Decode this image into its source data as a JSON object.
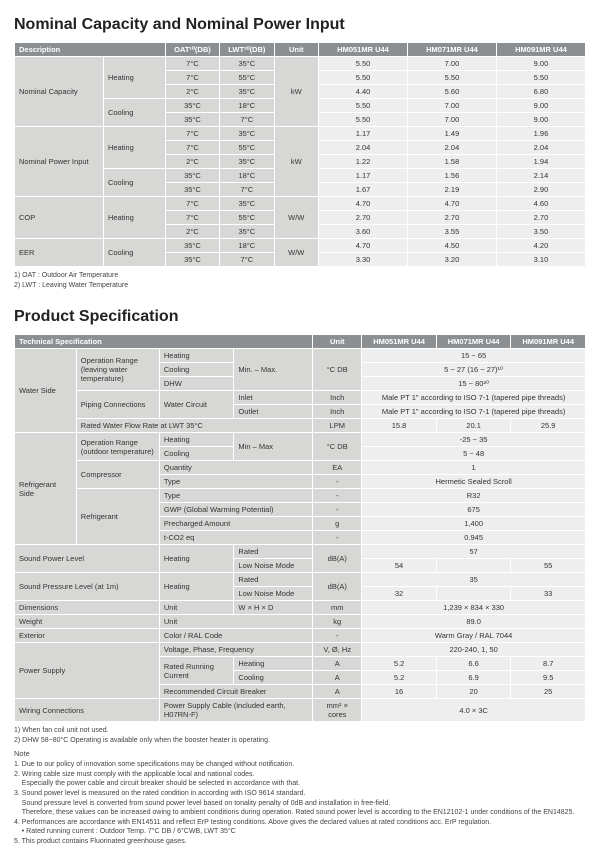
{
  "s1": {
    "title": "Nominal Capacity and Nominal Power Input",
    "headers": {
      "desc": "Description",
      "oat": "OAT¹⁰(DB)",
      "lwt": "LWT²⁰(DB)",
      "unit": "Unit",
      "m1": "HM051MR U44",
      "m2": "HM071MR U44",
      "m3": "HM091MR U44"
    },
    "groups": [
      {
        "name": "Nominal Capacity",
        "unit": "kW",
        "modes": [
          {
            "mode": "Heating",
            "rows": [
              {
                "oat": "7°C",
                "lwt": "35°C",
                "v": [
                  "5.50",
                  "7.00",
                  "9.00"
                ]
              },
              {
                "oat": "7°C",
                "lwt": "55°C",
                "v": [
                  "5.50",
                  "5.50",
                  "5.50"
                ]
              },
              {
                "oat": "2°C",
                "lwt": "35°C",
                "v": [
                  "4.40",
                  "5.60",
                  "6.80"
                ]
              }
            ]
          },
          {
            "mode": "Cooling",
            "rows": [
              {
                "oat": "35°C",
                "lwt": "18°C",
                "v": [
                  "5.50",
                  "7.00",
                  "9.00"
                ]
              },
              {
                "oat": "35°C",
                "lwt": "7°C",
                "v": [
                  "5.50",
                  "7.00",
                  "9.00"
                ]
              }
            ]
          }
        ]
      },
      {
        "name": "Nominal Power Input",
        "unit": "kW",
        "modes": [
          {
            "mode": "Heating",
            "rows": [
              {
                "oat": "7°C",
                "lwt": "35°C",
                "v": [
                  "1.17",
                  "1.49",
                  "1.96"
                ]
              },
              {
                "oat": "7°C",
                "lwt": "55°C",
                "v": [
                  "2.04",
                  "2.04",
                  "2.04"
                ]
              },
              {
                "oat": "2°C",
                "lwt": "35°C",
                "v": [
                  "1.22",
                  "1.58",
                  "1.94"
                ]
              }
            ]
          },
          {
            "mode": "Cooling",
            "rows": [
              {
                "oat": "35°C",
                "lwt": "18°C",
                "v": [
                  "1.17",
                  "1.56",
                  "2.14"
                ]
              },
              {
                "oat": "35°C",
                "lwt": "7°C",
                "v": [
                  "1.67",
                  "2.19",
                  "2.90"
                ]
              }
            ]
          }
        ]
      },
      {
        "name": "COP",
        "unit": "W/W",
        "modes": [
          {
            "mode": "Heating",
            "rows": [
              {
                "oat": "7°C",
                "lwt": "35°C",
                "v": [
                  "4.70",
                  "4.70",
                  "4.60"
                ]
              },
              {
                "oat": "7°C",
                "lwt": "55°C",
                "v": [
                  "2.70",
                  "2.70",
                  "2.70"
                ]
              },
              {
                "oat": "2°C",
                "lwt": "35°C",
                "v": [
                  "3.60",
                  "3.55",
                  "3.50"
                ]
              }
            ]
          }
        ]
      },
      {
        "name": "EER",
        "unit": "W/W",
        "modes": [
          {
            "mode": "Cooling",
            "rows": [
              {
                "oat": "35°C",
                "lwt": "18°C",
                "v": [
                  "4.70",
                  "4.50",
                  "4.20"
                ]
              },
              {
                "oat": "35°C",
                "lwt": "7°C",
                "v": [
                  "3.30",
                  "3.20",
                  "3.10"
                ]
              }
            ]
          }
        ]
      }
    ],
    "foot": [
      "1) OAT : Outdoor Air Temperature",
      "2) LWT : Leaving Water Temperature"
    ]
  },
  "s2": {
    "title": "Product Specification",
    "headers": {
      "tech": "Technical Specification",
      "unit": "Unit",
      "m1": "HM051MR U44",
      "m2": "HM071MR U44",
      "m3": "HM091MR U44"
    },
    "rows": [
      {
        "g": "Water Side",
        "gspan": 6,
        "c1": "Operation Range (leaving water temperature)",
        "c1span": 3,
        "c2": "Heating",
        "c3": "Min. – Max.",
        "c3span": 3,
        "unit": "°C DB",
        "unitspan": 3,
        "merge": 3,
        "val": "15 ~ 65"
      },
      {
        "c2": "Cooling",
        "merge": 3,
        "val": "5 ~ 27 (16 ~ 27)¹⁰"
      },
      {
        "c2": "DHW",
        "merge": 3,
        "val": "15 ~ 80²⁰"
      },
      {
        "c1": "Piping Connections",
        "c1span": 2,
        "c2": "Water Circuit",
        "c2span": 2,
        "c3": "Inlet",
        "unit": "Inch",
        "merge": 3,
        "val": "Male PT 1\" according to ISO 7-1 (tapered pipe threads)"
      },
      {
        "c3": "Outlet",
        "unit": "Inch",
        "merge": 3,
        "val": "Male PT 1\" according to ISO 7-1 (tapered pipe threads)"
      },
      {
        "c1": "Rated Water Flow Rate at LWT 35°C",
        "c1colspan": 3,
        "unit": "LPM",
        "v": [
          "15.8",
          "20.1",
          "25.9"
        ]
      },
      {
        "g": "Refrigerant Side",
        "gspan": 8,
        "c1": "Operation Range (outdoor temperature)",
        "c1span": 2,
        "c2": "Heating",
        "c3": "Min – Max",
        "c3span": 2,
        "unit": "°C DB",
        "unitspan": 2,
        "merge": 3,
        "val": "-25 ~ 35"
      },
      {
        "c2": "Cooling",
        "merge": 3,
        "val": "5 ~ 48"
      },
      {
        "c1": "Compressor",
        "c1span": 2,
        "c2": "Quantity",
        "c2colspan": 2,
        "unit": "EA",
        "merge": 3,
        "val": "1"
      },
      {
        "c2": "Type",
        "c2colspan": 2,
        "unit": "-",
        "merge": 3,
        "val": "Hermetic Sealed Scroll"
      },
      {
        "c1": "Refrigerant",
        "c1span": 4,
        "c2": "Type",
        "c2colspan": 2,
        "unit": "-",
        "merge": 3,
        "val": "R32"
      },
      {
        "c2": "GWP (Global Warming Potential)",
        "c2colspan": 2,
        "unit": "-",
        "merge": 3,
        "val": "675"
      },
      {
        "c2": "Precharged Amount",
        "c2colspan": 2,
        "unit": "g",
        "merge": 3,
        "val": "1,400"
      },
      {
        "c2": "t-CO2 eq",
        "c2colspan": 2,
        "unit": "-",
        "merge": 3,
        "val": "0.945"
      },
      {
        "g": "Sound Power Level",
        "gcolspan": 2,
        "gspan": 2,
        "c2": "Heating",
        "c2span": 2,
        "c3": "Rated",
        "unit": "dB(A)",
        "unitspan": 2,
        "merge": 3,
        "val": "57"
      },
      {
        "c3": "Low Noise Mode",
        "v": [
          "54",
          "",
          "55"
        ]
      },
      {
        "g": "Sound Pressure Level (at 1m)",
        "gcolspan": 2,
        "gspan": 2,
        "c2": "Heating",
        "c2span": 2,
        "c3": "Rated",
        "unit": "dB(A)",
        "unitspan": 2,
        "merge": 3,
        "val": "35"
      },
      {
        "c3": "Low Noise Mode",
        "v": [
          "32",
          "",
          "33"
        ]
      },
      {
        "g": "Dimensions",
        "gcolspan": 2,
        "c2": "Unit",
        "c3": "W × H × D",
        "unit": "mm",
        "merge": 3,
        "val": "1,239 × 834 × 330"
      },
      {
        "g": "Weight",
        "gcolspan": 2,
        "c2": "Unit",
        "c2colspan": 2,
        "unit": "kg",
        "merge": 3,
        "val": "89.0"
      },
      {
        "g": "Exterior",
        "gcolspan": 2,
        "c2": "Color / RAL Code",
        "c2colspan": 2,
        "unit": "-",
        "merge": 3,
        "val": "Warm Gray / RAL 7044"
      },
      {
        "g": "Power Supply",
        "gcolspan": 2,
        "gspan": 4,
        "c2": "Voltage, Phase, Frequency",
        "c2colspan": 2,
        "unit": "V, Ø, Hz",
        "merge": 3,
        "val": "220-240, 1, 50"
      },
      {
        "c2": "Rated Running Current",
        "c2span": 2,
        "c3": "Heating",
        "unit": "A",
        "v": [
          "5.2",
          "6.6",
          "8.7"
        ]
      },
      {
        "c3": "Cooling",
        "unit": "A",
        "v": [
          "5.2",
          "6.9",
          "9.5"
        ]
      },
      {
        "c2": "Recommended Circuit Breaker",
        "c2colspan": 2,
        "unit": "A",
        "v": [
          "16",
          "20",
          "25"
        ]
      },
      {
        "g": "Wiring Connections",
        "gcolspan": 2,
        "c2": "Power Supply Cable (included earth, H07RN-F)",
        "c2colspan": 2,
        "unit": "mm² × cores",
        "merge": 3,
        "val": "4.0 × 3C"
      }
    ],
    "foot1": [
      "1) When fan coil unit not used.",
      "2) DHW 58~80°C Operating is available only when the booster heater is operating."
    ],
    "noteTitle": "Note",
    "notes": [
      "1. Due to our policy of innovation some specifications may be changed without notification.",
      "2. Wiring cable size must comply with the applicable local and national codes.\n    Especially the power cable and circuit breaker should be selected in accordance with that.",
      "3. Sound power level is measured on the rated condition in according with ISO 9614 standard.\n    Sound pressure level is converted from sound power level based on tonality penalty of 0dB and installation in free-field.\n    Therefore, these values can be increased owing to ambient conditions during operation. Rated sound power level is according to the EN12102-1 under conditions of the EN14825.",
      "4. Performances are accordance with EN14511 and reflect ErP testing conditions. Above gives the declared values at rated conditions acc. ErP regulation.\n    • Rated running current : Outdoor Temp. 7°C DB / 6°CWB, LWT 35°C",
      "5. This product contains Fluorinated greenhouse gases."
    ]
  }
}
